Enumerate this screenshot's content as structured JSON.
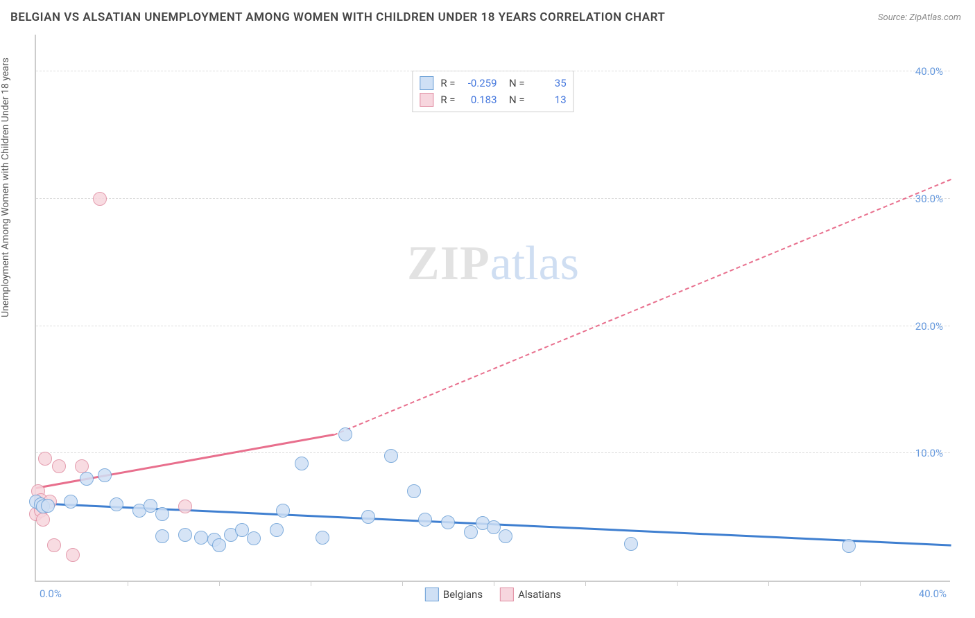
{
  "title": "BELGIAN VS ALSATIAN UNEMPLOYMENT AMONG WOMEN WITH CHILDREN UNDER 18 YEARS CORRELATION CHART",
  "source": "Source: ZipAtlas.com",
  "y_axis_label": "Unemployment Among Women with Children Under 18 years",
  "watermark_a": "ZIP",
  "watermark_b": "atlas",
  "chart": {
    "type": "scatter",
    "xlim": [
      0,
      40
    ],
    "ylim": [
      0,
      43
    ],
    "y_ticks": [
      10,
      20,
      30,
      40
    ],
    "y_tick_labels": [
      "10.0%",
      "20.0%",
      "30.0%",
      "40.0%"
    ],
    "x_tick_labels": {
      "left": "0.0%",
      "right": "40.0%"
    },
    "x_tick_marks": [
      4,
      8,
      12,
      16,
      20,
      24,
      28,
      32,
      36
    ],
    "background_color": "#ffffff",
    "grid_color": "#dddddd",
    "axis_color": "#cccccc",
    "tick_label_color": "#6699dd",
    "marker_radius": 10,
    "marker_stroke_width": 1,
    "series": {
      "belgians": {
        "label": "Belgians",
        "fill": "#cfe0f5",
        "stroke": "#6a9fd6",
        "points": [
          [
            0.0,
            6.2
          ],
          [
            0.2,
            6.0
          ],
          [
            0.3,
            5.8
          ],
          [
            0.5,
            5.9
          ],
          [
            1.5,
            6.2
          ],
          [
            2.2,
            8.0
          ],
          [
            3.0,
            8.3
          ],
          [
            3.5,
            6.0
          ],
          [
            4.5,
            5.5
          ],
          [
            5.0,
            5.9
          ],
          [
            5.5,
            5.2
          ],
          [
            5.5,
            3.5
          ],
          [
            6.5,
            3.6
          ],
          [
            7.2,
            3.4
          ],
          [
            7.8,
            3.2
          ],
          [
            8.0,
            2.8
          ],
          [
            8.5,
            3.6
          ],
          [
            9.0,
            4.0
          ],
          [
            9.5,
            3.3
          ],
          [
            10.5,
            4.0
          ],
          [
            10.8,
            5.5
          ],
          [
            11.6,
            9.2
          ],
          [
            12.5,
            3.4
          ],
          [
            13.5,
            11.5
          ],
          [
            14.5,
            5.0
          ],
          [
            15.5,
            9.8
          ],
          [
            16.5,
            7.0
          ],
          [
            17.0,
            4.8
          ],
          [
            18.0,
            4.6
          ],
          [
            19.0,
            3.8
          ],
          [
            19.5,
            4.5
          ],
          [
            20.0,
            4.2
          ],
          [
            20.5,
            3.5
          ],
          [
            26.0,
            2.9
          ],
          [
            35.5,
            2.7
          ]
        ],
        "trend": {
          "color": "#3f7fd0",
          "solid": {
            "x1": 0,
            "y1": 6.0,
            "x2": 40,
            "y2": 2.7
          },
          "dashed": null
        }
      },
      "alsatians": {
        "label": "Alsatians",
        "fill": "#f7d6de",
        "stroke": "#e08ca1",
        "points": [
          [
            0.0,
            5.2
          ],
          [
            0.1,
            7.0
          ],
          [
            0.2,
            6.3
          ],
          [
            0.2,
            5.5
          ],
          [
            0.3,
            4.8
          ],
          [
            0.4,
            9.6
          ],
          [
            0.6,
            6.2
          ],
          [
            0.8,
            2.8
          ],
          [
            1.0,
            9.0
          ],
          [
            1.6,
            2.0
          ],
          [
            2.0,
            9.0
          ],
          [
            2.8,
            30.0
          ],
          [
            6.5,
            5.8
          ]
        ],
        "trend": {
          "color": "#e86f8d",
          "solid": {
            "x1": 0,
            "y1": 7.2,
            "x2": 13,
            "y2": 11.4
          },
          "dashed": {
            "x1": 13,
            "y1": 11.4,
            "x2": 40,
            "y2": 31.5
          }
        }
      }
    }
  },
  "legend_top": {
    "rows": [
      {
        "swatch_fill": "#cfe0f5",
        "swatch_stroke": "#6a9fd6",
        "r_label": "R =",
        "r_value": "-0.259",
        "n_label": "N =",
        "n_value": "35"
      },
      {
        "swatch_fill": "#f7d6de",
        "swatch_stroke": "#e08ca1",
        "r_label": "R =",
        "r_value": "0.183",
        "n_label": "N =",
        "n_value": "13"
      }
    ]
  },
  "legend_bottom": {
    "items": [
      {
        "swatch_fill": "#cfe0f5",
        "swatch_stroke": "#6a9fd6",
        "label": "Belgians"
      },
      {
        "swatch_fill": "#f7d6de",
        "swatch_stroke": "#e08ca1",
        "label": "Alsatians"
      }
    ]
  }
}
